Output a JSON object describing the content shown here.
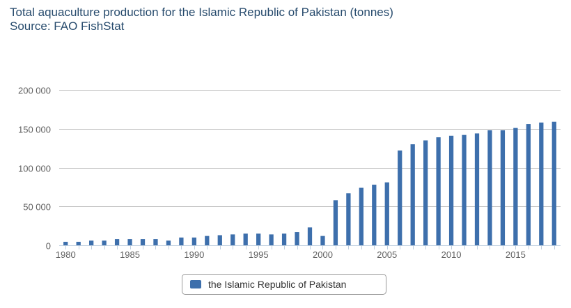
{
  "chart_data": {
    "type": "bar",
    "title": "Total aquaculture production for the Islamic Republic of Pakistan (tonnes)",
    "subtitle": "Source: FAO FishStat",
    "xlabel": "",
    "ylabel": "",
    "ylim": [
      0,
      200000
    ],
    "y_ticks": [
      0,
      50000,
      100000,
      150000,
      200000
    ],
    "y_tick_labels": [
      "0",
      "50 000",
      "100 000",
      "150 000",
      "200 000"
    ],
    "x_tick_labels": [
      "1980",
      "1985",
      "1990",
      "1995",
      "2000",
      "2005",
      "2010",
      "2015"
    ],
    "grid": true,
    "legend_position": "bottom-center",
    "color": "#3d6fac",
    "categories": [
      1980,
      1981,
      1982,
      1983,
      1984,
      1985,
      1986,
      1987,
      1988,
      1989,
      1990,
      1991,
      1992,
      1993,
      1994,
      1995,
      1996,
      1997,
      1998,
      1999,
      2000,
      2001,
      2002,
      2003,
      2004,
      2005,
      2006,
      2007,
      2008,
      2009,
      2010,
      2011,
      2012,
      2013,
      2014,
      2015,
      2016,
      2017,
      2018
    ],
    "series": [
      {
        "name": "the Islamic Republic of Pakistan",
        "values": [
          4500,
          4500,
          6000,
          6000,
          8000,
          8000,
          8000,
          8000,
          6000,
          10000,
          10000,
          12000,
          13000,
          14000,
          15000,
          15000,
          14000,
          15000,
          17000,
          23000,
          12000,
          58000,
          67000,
          74000,
          78000,
          81000,
          122000,
          130000,
          135000,
          139000,
          141000,
          142000,
          144000,
          148000,
          148000,
          151000,
          156000,
          158000,
          159000
        ]
      }
    ]
  }
}
